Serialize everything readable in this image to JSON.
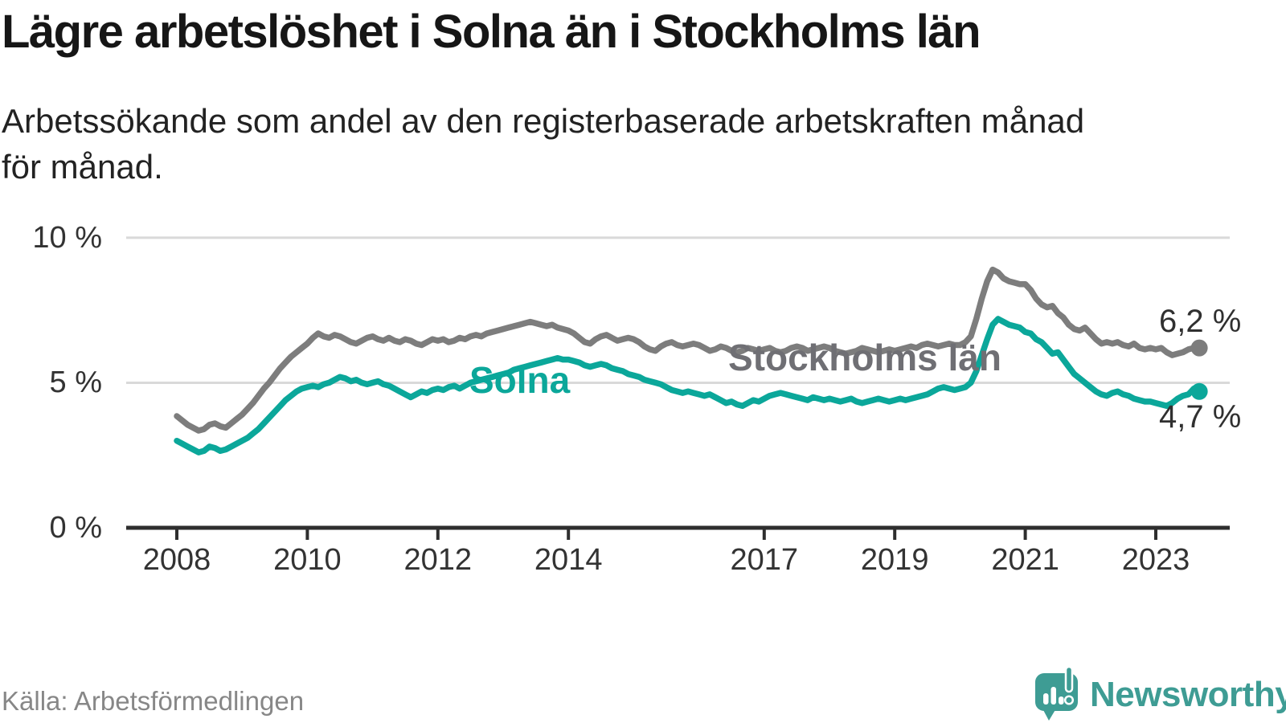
{
  "header": {
    "title": "Lägre arbetslöshet i Solna än i Stockholms län",
    "subtitle_line1": "Arbetssökande som andel av den registerbaserade arbetskraften månad",
    "subtitle_line2": "för månad."
  },
  "footer": {
    "source": "Källa: Arbetsförmedlingen",
    "brand": "Newsworthy"
  },
  "colors": {
    "solna": "#0ba79a",
    "stockholm": "#7d7d7d",
    "stockholm_label": "#6f6f74",
    "axis": "#2e2e2e",
    "grid": "#d9d9d9",
    "tick_text": "#333333",
    "logo": "#3e9c94"
  },
  "chart_data": {
    "type": "line",
    "title": "Lägre arbetslöshet i Solna än i Stockholms län",
    "xlabel": "",
    "ylabel": "Arbetssökande som andel av den registerbaserade arbetskraften",
    "ylim": [
      0,
      10
    ],
    "grid": "horizontal",
    "legend_position": "inline-labels",
    "x_unit": "monthly",
    "start_year": 2008,
    "points_per_year": 12,
    "y_ticks": [
      {
        "value": 0,
        "label": "0 %"
      },
      {
        "value": 5,
        "label": "5 %"
      },
      {
        "value": 10,
        "label": "10 %"
      }
    ],
    "x_ticks": [
      {
        "value": 2008,
        "label": "2008"
      },
      {
        "value": 2010,
        "label": "2010"
      },
      {
        "value": 2012,
        "label": "2012"
      },
      {
        "value": 2014,
        "label": "2014"
      },
      {
        "value": 2017,
        "label": "2017"
      },
      {
        "value": 2019,
        "label": "2019"
      },
      {
        "value": 2021,
        "label": "2021"
      },
      {
        "value": 2023,
        "label": "2023"
      }
    ],
    "series": [
      {
        "name": "Stockholms län",
        "color": "#7d7d7d",
        "end_label": "6,2 %",
        "end_value": 6.2,
        "values": [
          3.85,
          3.7,
          3.55,
          3.45,
          3.35,
          3.4,
          3.55,
          3.6,
          3.5,
          3.45,
          3.6,
          3.75,
          3.9,
          4.1,
          4.3,
          4.55,
          4.8,
          5.0,
          5.25,
          5.5,
          5.7,
          5.9,
          6.05,
          6.2,
          6.35,
          6.55,
          6.7,
          6.6,
          6.55,
          6.65,
          6.6,
          6.5,
          6.4,
          6.35,
          6.45,
          6.55,
          6.6,
          6.5,
          6.45,
          6.55,
          6.45,
          6.4,
          6.5,
          6.45,
          6.35,
          6.3,
          6.4,
          6.5,
          6.45,
          6.5,
          6.4,
          6.45,
          6.55,
          6.5,
          6.6,
          6.65,
          6.6,
          6.7,
          6.75,
          6.8,
          6.85,
          6.9,
          6.95,
          7.0,
          7.05,
          7.1,
          7.05,
          7.0,
          6.95,
          7.0,
          6.9,
          6.85,
          6.8,
          6.7,
          6.55,
          6.4,
          6.35,
          6.5,
          6.6,
          6.65,
          6.55,
          6.45,
          6.5,
          6.55,
          6.5,
          6.4,
          6.25,
          6.15,
          6.1,
          6.25,
          6.35,
          6.4,
          6.3,
          6.25,
          6.3,
          6.35,
          6.3,
          6.2,
          6.1,
          6.15,
          6.25,
          6.2,
          6.1,
          6.05,
          6.1,
          6.2,
          6.15,
          6.1,
          6.15,
          6.2,
          6.1,
          6.05,
          6.1,
          6.2,
          6.25,
          6.2,
          6.1,
          6.15,
          6.2,
          6.25,
          6.2,
          6.1,
          6.05,
          6.0,
          6.05,
          6.1,
          6.2,
          6.15,
          6.1,
          6.05,
          6.1,
          6.15,
          6.1,
          6.15,
          6.2,
          6.25,
          6.2,
          6.3,
          6.35,
          6.3,
          6.25,
          6.3,
          6.35,
          6.3,
          6.3,
          6.4,
          6.6,
          7.2,
          7.9,
          8.5,
          8.9,
          8.8,
          8.6,
          8.5,
          8.45,
          8.4,
          8.4,
          8.2,
          7.9,
          7.7,
          7.6,
          7.65,
          7.4,
          7.25,
          7.0,
          6.85,
          6.8,
          6.9,
          6.7,
          6.5,
          6.35,
          6.4,
          6.35,
          6.4,
          6.3,
          6.25,
          6.35,
          6.2,
          6.15,
          6.2,
          6.15,
          6.2,
          6.05,
          5.95,
          6.0,
          6.05,
          6.15,
          6.2,
          6.2
        ]
      },
      {
        "name": "Solna",
        "color": "#0ba79a",
        "end_label": "4,7 %",
        "end_value": 4.7,
        "values": [
          3.0,
          2.9,
          2.8,
          2.7,
          2.6,
          2.65,
          2.8,
          2.75,
          2.65,
          2.7,
          2.8,
          2.9,
          3.0,
          3.1,
          3.25,
          3.4,
          3.6,
          3.8,
          4.0,
          4.2,
          4.4,
          4.55,
          4.7,
          4.8,
          4.85,
          4.9,
          4.85,
          4.95,
          5.0,
          5.1,
          5.2,
          5.15,
          5.05,
          5.1,
          5.0,
          4.95,
          5.0,
          5.05,
          4.95,
          4.9,
          4.8,
          4.7,
          4.6,
          4.5,
          4.6,
          4.7,
          4.65,
          4.75,
          4.8,
          4.75,
          4.85,
          4.9,
          4.8,
          4.9,
          5.0,
          5.05,
          5.1,
          5.15,
          5.2,
          5.25,
          5.3,
          5.35,
          5.45,
          5.5,
          5.55,
          5.6,
          5.65,
          5.7,
          5.75,
          5.8,
          5.85,
          5.8,
          5.8,
          5.75,
          5.7,
          5.6,
          5.55,
          5.6,
          5.65,
          5.6,
          5.5,
          5.45,
          5.4,
          5.3,
          5.25,
          5.2,
          5.1,
          5.05,
          5.0,
          4.95,
          4.85,
          4.75,
          4.7,
          4.65,
          4.7,
          4.65,
          4.6,
          4.55,
          4.6,
          4.5,
          4.4,
          4.3,
          4.35,
          4.25,
          4.2,
          4.3,
          4.4,
          4.35,
          4.45,
          4.55,
          4.6,
          4.65,
          4.6,
          4.55,
          4.5,
          4.45,
          4.4,
          4.5,
          4.45,
          4.4,
          4.45,
          4.4,
          4.35,
          4.4,
          4.45,
          4.35,
          4.3,
          4.35,
          4.4,
          4.45,
          4.4,
          4.35,
          4.4,
          4.45,
          4.4,
          4.45,
          4.5,
          4.55,
          4.6,
          4.7,
          4.8,
          4.85,
          4.8,
          4.75,
          4.8,
          4.85,
          5.0,
          5.4,
          5.95,
          6.5,
          7.0,
          7.2,
          7.1,
          7.0,
          6.95,
          6.9,
          6.75,
          6.7,
          6.5,
          6.4,
          6.2,
          6.0,
          6.05,
          5.8,
          5.55,
          5.3,
          5.15,
          5.0,
          4.85,
          4.7,
          4.6,
          4.55,
          4.65,
          4.7,
          4.6,
          4.55,
          4.45,
          4.4,
          4.35,
          4.35,
          4.3,
          4.25,
          4.2,
          4.3,
          4.45,
          4.55,
          4.6,
          4.8,
          4.7
        ]
      }
    ]
  }
}
